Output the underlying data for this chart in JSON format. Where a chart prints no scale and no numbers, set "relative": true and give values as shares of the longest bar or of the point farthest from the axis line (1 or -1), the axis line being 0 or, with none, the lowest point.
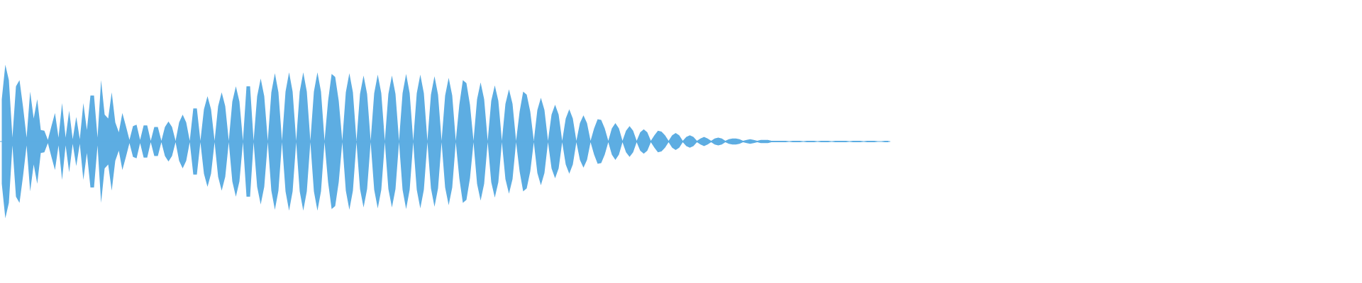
{
  "chart_data": {
    "type": "area",
    "relative": true,
    "categories": [
      null,
      null,
      null,
      null,
      null,
      null,
      null,
      null,
      null,
      null,
      null,
      null,
      null,
      null,
      null,
      null,
      null,
      null,
      null,
      null,
      null,
      null,
      null,
      null,
      null,
      null,
      null,
      null,
      null,
      null,
      null,
      null,
      null,
      null,
      null,
      null,
      null,
      null,
      null,
      null,
      null,
      null,
      null,
      null,
      null,
      null,
      null,
      null,
      null,
      null,
      null,
      null,
      null,
      null,
      null,
      null,
      null,
      null,
      null,
      null,
      null,
      null,
      null,
      null,
      null,
      null,
      null,
      null,
      null,
      null,
      null,
      null,
      null,
      null,
      null,
      null,
      null,
      null,
      null,
      null,
      null,
      null,
      null,
      null,
      null,
      null,
      null,
      null,
      null,
      null,
      null,
      null,
      null,
      null,
      null,
      null,
      null,
      null,
      null,
      null,
      null,
      null,
      null,
      null,
      null,
      null,
      null,
      null,
      null,
      null,
      null,
      null,
      null,
      null,
      null,
      null,
      null,
      null,
      null,
      null,
      null,
      null,
      null,
      null,
      null,
      null,
      null,
      null,
      null,
      null,
      null,
      null,
      null,
      null,
      null,
      null,
      null,
      null,
      null,
      null,
      null,
      null,
      null,
      null,
      null,
      null,
      null,
      null,
      null,
      null,
      null,
      null,
      null,
      null,
      null,
      null,
      null,
      null,
      null,
      null,
      null,
      null,
      null,
      null,
      null,
      null,
      null,
      null,
      null,
      null,
      null,
      null,
      null,
      null,
      null,
      null,
      null,
      null,
      null,
      null,
      null,
      null,
      null,
      null,
      null,
      null,
      null,
      null,
      null,
      null,
      null,
      null,
      null,
      null,
      null,
      null,
      null,
      null,
      null,
      null,
      null,
      null,
      null,
      null,
      null,
      null,
      null,
      null,
      null,
      null,
      null,
      null,
      null,
      null,
      null,
      null,
      null,
      null,
      null,
      null,
      null,
      null,
      null,
      null,
      null,
      null,
      null,
      null,
      null,
      null,
      null,
      null,
      null,
      null,
      null,
      null,
      null,
      null,
      null,
      null,
      null,
      null,
      null,
      null,
      null,
      null,
      null,
      null,
      null,
      null,
      null
    ],
    "series": [
      {
        "color": "#5dade2",
        "values": [
          0.55,
          1.0,
          0.8,
          0.05,
          0.72,
          0.8,
          0.45,
          0.05,
          0.65,
          0.3,
          0.55,
          0.15,
          0.14,
          0.02,
          0.2,
          0.37,
          0.05,
          0.5,
          0.05,
          0.4,
          0.03,
          0.32,
          0.03,
          0.5,
          0.15,
          0.6,
          0.6,
          0.05,
          0.8,
          0.35,
          0.3,
          0.64,
          0.25,
          0.12,
          0.37,
          0.2,
          0.02,
          0.2,
          0.22,
          0.02,
          0.21,
          0.21,
          0.01,
          0.19,
          0.19,
          0.01,
          0.19,
          0.26,
          0.19,
          0.01,
          0.25,
          0.35,
          0.25,
          0.01,
          0.43,
          0.43,
          0.01,
          0.42,
          0.59,
          0.42,
          0.01,
          0.46,
          0.64,
          0.46,
          0.01,
          0.52,
          0.72,
          0.52,
          0.01,
          0.72,
          0.72,
          0.01,
          0.59,
          0.82,
          0.59,
          0.01,
          0.64,
          0.89,
          0.64,
          0.01,
          0.65,
          0.9,
          0.65,
          0.01,
          0.65,
          0.9,
          0.65,
          0.01,
          0.65,
          0.9,
          0.65,
          0.01,
          0.53,
          0.88,
          0.84,
          0.53,
          0.01,
          0.64,
          0.89,
          0.64,
          0.01,
          0.62,
          0.86,
          0.62,
          0.01,
          0.63,
          0.87,
          0.63,
          0.01,
          0.62,
          0.86,
          0.62,
          0.01,
          0.63,
          0.88,
          0.63,
          0.01,
          0.63,
          0.87,
          0.63,
          0.01,
          0.61,
          0.85,
          0.61,
          0.01,
          0.6,
          0.83,
          0.6,
          0.01,
          0.48,
          0.8,
          0.76,
          0.48,
          0.01,
          0.55,
          0.77,
          0.55,
          0.01,
          0.53,
          0.73,
          0.53,
          0.01,
          0.49,
          0.68,
          0.49,
          0.01,
          0.39,
          0.65,
          0.61,
          0.39,
          0.01,
          0.41,
          0.57,
          0.41,
          0.01,
          0.35,
          0.48,
          0.35,
          0.01,
          0.3,
          0.42,
          0.3,
          0.01,
          0.24,
          0.34,
          0.24,
          0.01,
          0.17,
          0.29,
          0.28,
          0.17,
          0.01,
          0.17,
          0.24,
          0.17,
          0.01,
          0.14,
          0.2,
          0.14,
          0.01,
          0.12,
          0.16,
          0.12,
          0.01,
          0.08,
          0.14,
          0.13,
          0.08,
          0.01,
          0.08,
          0.11,
          0.08,
          0.01,
          0.06,
          0.08,
          0.06,
          0.01,
          0.04,
          0.06,
          0.04,
          0.01,
          0.04,
          0.05,
          0.04,
          0.01,
          0.03,
          0.04,
          0.04,
          0.03,
          0.01,
          0.02,
          0.03,
          0.02,
          0.01,
          0.02,
          0.02,
          0.02,
          0.01,
          0.01,
          0.01,
          0.01,
          0.01,
          0,
          0.01,
          0.01,
          0.01,
          0,
          0.01,
          0.01,
          0.01,
          0,
          0.01,
          0.01,
          0.01,
          0,
          0.01,
          0.01,
          0.01,
          0.01,
          0,
          0.01,
          0.01,
          0.01,
          0,
          0.01,
          0.01,
          0.01,
          0,
          0,
          0.01,
          0.01
        ]
      },
      {
        "color": "#5dade2",
        "values": [
          -0.55,
          -1.0,
          -0.8,
          -0.05,
          -0.72,
          -0.8,
          -0.45,
          -0.05,
          -0.65,
          -0.3,
          -0.55,
          -0.15,
          -0.14,
          -0.02,
          -0.2,
          -0.37,
          -0.05,
          -0.5,
          -0.05,
          -0.4,
          -0.03,
          -0.32,
          -0.03,
          -0.5,
          -0.15,
          -0.6,
          -0.6,
          -0.05,
          -0.8,
          -0.35,
          -0.3,
          -0.64,
          -0.25,
          -0.12,
          -0.37,
          -0.2,
          -0.02,
          -0.2,
          -0.22,
          -0.02,
          -0.21,
          -0.21,
          -0.01,
          -0.19,
          -0.19,
          -0.01,
          -0.19,
          -0.26,
          -0.19,
          -0.01,
          -0.25,
          -0.35,
          -0.25,
          -0.01,
          -0.43,
          -0.43,
          -0.01,
          -0.42,
          -0.59,
          -0.42,
          -0.01,
          -0.46,
          -0.64,
          -0.46,
          -0.01,
          -0.52,
          -0.72,
          -0.52,
          -0.01,
          -0.72,
          -0.72,
          -0.01,
          -0.59,
          -0.82,
          -0.59,
          -0.01,
          -0.64,
          -0.89,
          -0.64,
          -0.01,
          -0.65,
          -0.9,
          -0.65,
          -0.01,
          -0.65,
          -0.9,
          -0.65,
          -0.01,
          -0.65,
          -0.9,
          -0.65,
          -0.01,
          -0.53,
          -0.88,
          -0.84,
          -0.53,
          -0.01,
          -0.64,
          -0.89,
          -0.64,
          -0.01,
          -0.62,
          -0.86,
          -0.62,
          -0.01,
          -0.63,
          -0.87,
          -0.63,
          -0.01,
          -0.62,
          -0.86,
          -0.62,
          -0.01,
          -0.63,
          -0.88,
          -0.63,
          -0.01,
          -0.63,
          -0.87,
          -0.63,
          -0.01,
          -0.61,
          -0.85,
          -0.61,
          -0.01,
          -0.6,
          -0.83,
          -0.6,
          -0.01,
          -0.48,
          -0.8,
          -0.76,
          -0.48,
          -0.01,
          -0.55,
          -0.77,
          -0.55,
          -0.01,
          -0.53,
          -0.73,
          -0.53,
          -0.01,
          -0.49,
          -0.68,
          -0.49,
          -0.01,
          -0.39,
          -0.65,
          -0.61,
          -0.39,
          -0.01,
          -0.41,
          -0.57,
          -0.41,
          -0.01,
          -0.35,
          -0.48,
          -0.35,
          -0.01,
          -0.3,
          -0.42,
          -0.3,
          -0.01,
          -0.24,
          -0.34,
          -0.24,
          -0.01,
          -0.17,
          -0.29,
          -0.28,
          -0.17,
          -0.01,
          -0.17,
          -0.24,
          -0.17,
          -0.01,
          -0.14,
          -0.2,
          -0.14,
          -0.01,
          -0.12,
          -0.16,
          -0.12,
          -0.01,
          -0.08,
          -0.14,
          -0.13,
          -0.08,
          -0.01,
          -0.08,
          -0.11,
          -0.08,
          -0.01,
          -0.06,
          -0.08,
          -0.06,
          -0.01,
          -0.04,
          -0.06,
          -0.04,
          -0.01,
          -0.04,
          -0.05,
          -0.04,
          -0.01,
          -0.03,
          -0.04,
          -0.04,
          -0.03,
          -0.01,
          -0.02,
          -0.03,
          -0.02,
          -0.01,
          -0.02,
          -0.02,
          -0.02,
          -0.01,
          -0.01,
          -0.01,
          -0.01,
          -0.01,
          0,
          -0.01,
          -0.01,
          -0.01,
          0,
          -0.01,
          -0.01,
          -0.01,
          0,
          -0.01,
          -0.01,
          -0.01,
          0,
          -0.01,
          -0.01,
          -0.01,
          -0.01,
          0,
          -0.01,
          -0.01,
          -0.01,
          0,
          -0.01,
          -0.01,
          -0.01,
          0,
          0,
          -0.01,
          -0.01
        ]
      }
    ],
    "ref_lines": [
      {
        "axis": "y",
        "value": 0,
        "color": "#5dade2"
      }
    ]
  }
}
